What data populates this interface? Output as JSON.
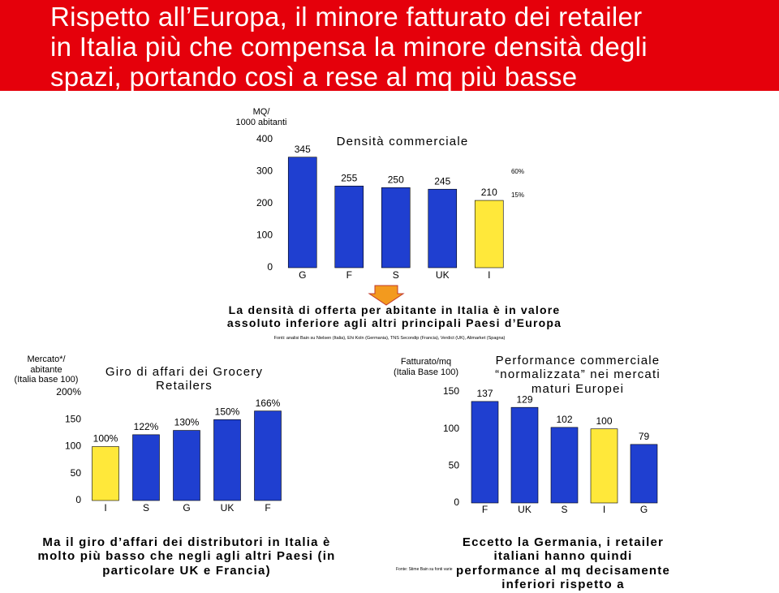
{
  "title": "Rispetto all’Europa, il minore fatturato dei retailer\nin Italia più che compensa la minore densità degli\nspazi, portando così a rese al mq più basse",
  "chart_data": [
    {
      "type": "bar",
      "title": "Densità commerciale",
      "ylabel": "MQ/\n1000 abitanti",
      "categories": [
        "G",
        "F",
        "S",
        "UK",
        "I"
      ],
      "values": [
        345,
        255,
        250,
        245,
        210
      ],
      "colors": [
        "#1f3fd0",
        "#1f3fd0",
        "#1f3fd0",
        "#1f3fd0",
        "#ffe83a"
      ],
      "ylim": [
        0,
        400
      ],
      "yticks": [
        0,
        100,
        200,
        300,
        400
      ],
      "annotations": [
        "60%",
        "15%"
      ]
    },
    {
      "type": "bar",
      "title": "Giro di affari dei Grocery\nRetailers",
      "ylabel": "Mercato*/\nabitante\n(Italia base 100)",
      "categories": [
        "I",
        "S",
        "G",
        "UK",
        "F"
      ],
      "values": [
        100,
        122,
        130,
        150,
        166
      ],
      "value_labels": [
        "100%",
        "122%",
        "130%",
        "150%",
        "166%"
      ],
      "colors": [
        "#ffe83a",
        "#1f3fd0",
        "#1f3fd0",
        "#1f3fd0",
        "#1f3fd0"
      ],
      "ylim": [
        0,
        200
      ],
      "yticks": [
        0,
        50,
        100,
        150,
        {
          "value": 200,
          "label": "200%"
        }
      ]
    },
    {
      "type": "bar",
      "title": "Performance commerciale\n“normalizzata” nei mercati\nmaturi Europei",
      "ylabel": "Fatturato/mq\n(Italia Base 100)",
      "categories": [
        "F",
        "UK",
        "S",
        "I",
        "G"
      ],
      "values": [
        137,
        129,
        102,
        100,
        79
      ],
      "colors": [
        "#1f3fd0",
        "#1f3fd0",
        "#1f3fd0",
        "#ffe83a",
        "#1f3fd0"
      ],
      "ylim": [
        0,
        150
      ],
      "yticks": [
        0,
        50,
        100,
        150
      ]
    }
  ],
  "note": "La densità di offerta per abitante in Italia è in valore\nassoluto inferiore agli altri principali Paesi d’Europa",
  "source": "Fonti: analisi Bain su Nielsen (Italia), Ehi Koln (Germania), TNS Secondip (Francia), Verdict (UK), Alimarket (Spagna)",
  "captions": [
    "Ma il giro d’affari dei distributori in Italia è\nmolto più basso che negli agli altri Paesi (in\nparticolare UK e Francia)",
    "Eccetto la Germania, i retailer italiani hanno quindi\nperformance al mq decisamente inferiori rispetto a\nFrancia e UK"
  ],
  "source2": "Fonte: Stime Bain su fonti varie"
}
